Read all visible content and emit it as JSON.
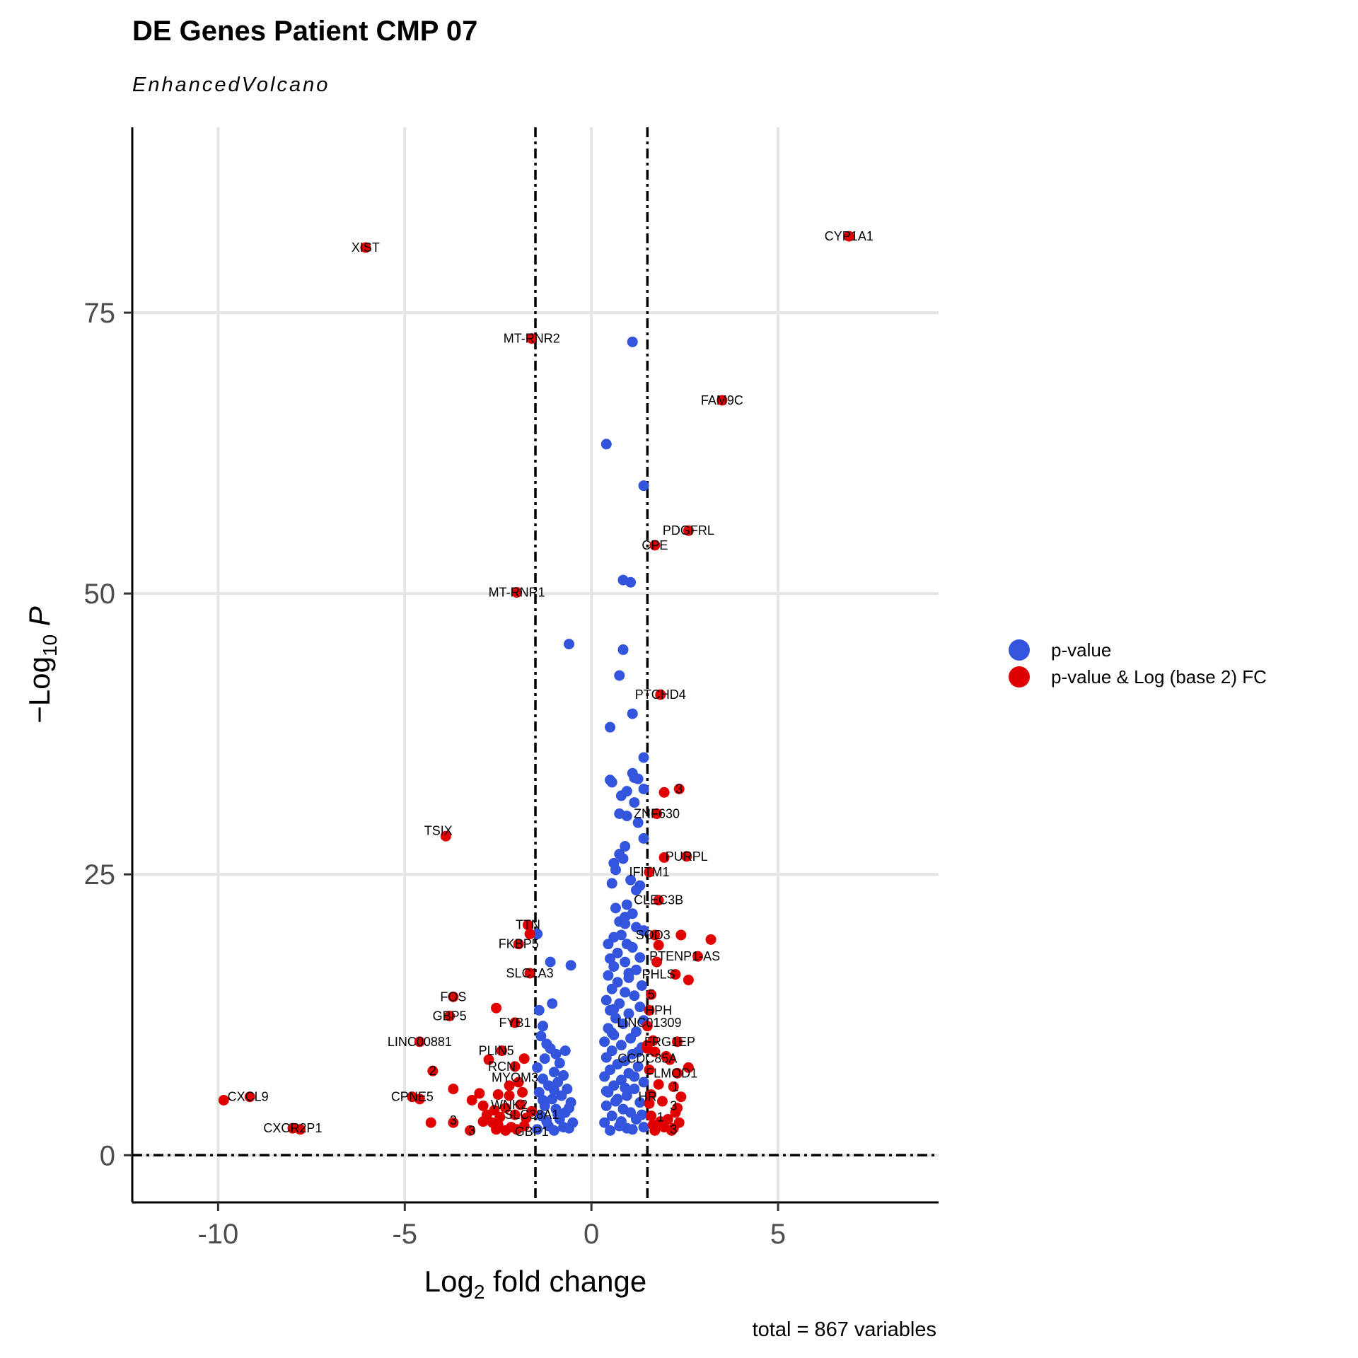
{
  "chart_data": {
    "type": "scatter",
    "title": "DE Genes Patient CMP 07",
    "subtitle": "EnhancedVolcano",
    "caption": "total = 867 variables",
    "xlabel": "Log2 fold change",
    "ylabel": "-Log10 P",
    "xlim": [
      -12.3,
      9.3
    ],
    "ylim": [
      -4.2,
      91.5
    ],
    "x_ticks": [
      -10,
      -5,
      0,
      5
    ],
    "x_tick_labels": [
      "-10",
      "-5",
      "0",
      "5"
    ],
    "y_ticks": [
      0,
      25,
      50,
      75
    ],
    "y_tick_labels": [
      "0",
      "25",
      "50",
      "75"
    ],
    "grid": true,
    "fc_cutoff": 1.5,
    "p_cutoff_line": 0,
    "legend": {
      "placement": "right",
      "entries": [
        {
          "label": "p-value",
          "color": "#3355dd"
        },
        {
          "label": "p-value & Log (base 2) FC",
          "color": "#e00000"
        }
      ]
    },
    "series": [
      {
        "name": "p-value",
        "color": "#3355dd",
        "points": [
          [
            1.1,
            72.4
          ],
          [
            0.4,
            63.3
          ],
          [
            1.4,
            59.6
          ],
          [
            0.85,
            51.2
          ],
          [
            1.05,
            51
          ],
          [
            -0.6,
            45.5
          ],
          [
            0.85,
            45
          ],
          [
            0.75,
            42.7
          ],
          [
            1.1,
            39.3
          ],
          [
            0.5,
            38.1
          ],
          [
            1.4,
            35.4
          ],
          [
            0.5,
            33.4
          ],
          [
            0.55,
            33.2
          ],
          [
            1.1,
            34
          ],
          [
            1.15,
            33.6
          ],
          [
            1.25,
            33.5
          ],
          [
            0.95,
            32.4
          ],
          [
            0.8,
            32
          ],
          [
            1.15,
            31.4
          ],
          [
            1.4,
            32.6
          ],
          [
            0.75,
            30.4
          ],
          [
            0.95,
            30.2
          ],
          [
            1.25,
            29.6
          ],
          [
            1.4,
            28.2
          ],
          [
            0.9,
            27.5
          ],
          [
            0.75,
            26.8
          ],
          [
            0.85,
            26.4
          ],
          [
            0.6,
            26
          ],
          [
            0.65,
            25.4
          ],
          [
            0.55,
            24.2
          ],
          [
            1.05,
            24.5
          ],
          [
            1.3,
            24
          ],
          [
            1.2,
            23.6
          ],
          [
            0.95,
            22.3
          ],
          [
            0.65,
            22
          ],
          [
            1.1,
            21.5
          ],
          [
            0.9,
            21.2
          ],
          [
            0.75,
            20.8
          ],
          [
            1.2,
            20.3
          ],
          [
            1.4,
            20
          ],
          [
            0.8,
            19.6
          ],
          [
            0.6,
            19.4
          ],
          [
            0.95,
            18.8
          ],
          [
            1.1,
            18.5
          ],
          [
            0.7,
            18
          ],
          [
            0.5,
            17.5
          ],
          [
            1.3,
            17.6
          ],
          [
            0.9,
            17.2
          ],
          [
            0.6,
            16.8
          ],
          [
            1.2,
            16.5
          ],
          [
            0.45,
            16
          ],
          [
            1,
            15.8
          ],
          [
            0.7,
            15.4
          ],
          [
            1.35,
            15.1
          ],
          [
            0.55,
            14.8
          ],
          [
            0.9,
            14.5
          ],
          [
            1.15,
            14.2
          ],
          [
            0.4,
            13.8
          ],
          [
            0.75,
            13.5
          ],
          [
            1.3,
            13.2
          ],
          [
            0.5,
            12.9
          ],
          [
            1,
            12.6
          ],
          [
            0.65,
            12.2
          ],
          [
            1.4,
            12
          ],
          [
            0.85,
            11.7
          ],
          [
            0.45,
            11.3
          ],
          [
            1.2,
            11
          ],
          [
            0.6,
            10.7
          ],
          [
            1.05,
            10.4
          ],
          [
            0.35,
            10.1
          ],
          [
            0.8,
            9.8
          ],
          [
            1.35,
            9.6
          ],
          [
            0.55,
            9.3
          ],
          [
            1.1,
            9
          ],
          [
            0.4,
            8.7
          ],
          [
            0.9,
            8.4
          ],
          [
            0.7,
            8.1
          ],
          [
            1.25,
            7.9
          ],
          [
            0.5,
            7.6
          ],
          [
            1,
            7.3
          ],
          [
            0.35,
            7
          ],
          [
            0.8,
            6.7
          ],
          [
            1.4,
            6.5
          ],
          [
            0.6,
            6.2
          ],
          [
            1.15,
            5.9
          ],
          [
            0.45,
            5.6
          ],
          [
            0.95,
            5.3
          ],
          [
            0.7,
            5
          ],
          [
            1.3,
            4.7
          ],
          [
            0.4,
            4.4
          ],
          [
            0.85,
            4.1
          ],
          [
            1.05,
            3.8
          ],
          [
            0.55,
            3.5
          ],
          [
            1.2,
            3.2
          ],
          [
            0.35,
            2.9
          ],
          [
            0.75,
            2.6
          ],
          [
            0.95,
            2.4
          ],
          [
            1.4,
            2.5
          ],
          [
            0.5,
            2.2
          ],
          [
            1.1,
            2.3
          ],
          [
            0.65,
            4.8
          ],
          [
            0.9,
            6
          ],
          [
            1.25,
            9.2
          ],
          [
            0.6,
            13
          ],
          [
            1.0,
            16.2
          ],
          [
            0.45,
            18.8
          ],
          [
            1.35,
            3.6
          ],
          [
            0.8,
            3
          ],
          [
            0.4,
            5.7
          ],
          [
            1.15,
            7
          ],
          [
            0.55,
            10.9
          ],
          [
            0.9,
            20.6
          ],
          [
            -1.1,
            17.2
          ],
          [
            -0.55,
            16.9
          ],
          [
            -1.45,
            19.7
          ],
          [
            -1.4,
            12.9
          ],
          [
            -1.05,
            13.5
          ],
          [
            -0.7,
            9.3
          ],
          [
            -1.3,
            11.5
          ],
          [
            -1.35,
            10.6
          ],
          [
            -1.2,
            9.9
          ],
          [
            -1.1,
            9.5
          ],
          [
            -0.95,
            9
          ],
          [
            -1.25,
            8.6
          ],
          [
            -0.85,
            8.2
          ],
          [
            -1.45,
            7.8
          ],
          [
            -1.0,
            7.4
          ],
          [
            -0.75,
            7.1
          ],
          [
            -1.3,
            6.8
          ],
          [
            -0.9,
            6.5
          ],
          [
            -1.15,
            6.2
          ],
          [
            -0.65,
            5.9
          ],
          [
            -1.4,
            5.6
          ],
          [
            -0.8,
            5.3
          ],
          [
            -1.05,
            5
          ],
          [
            -0.55,
            4.7
          ],
          [
            -1.25,
            4.4
          ],
          [
            -0.95,
            4.1
          ],
          [
            -0.7,
            3.8
          ],
          [
            -1.35,
            3.5
          ],
          [
            -0.85,
            3.2
          ],
          [
            -0.5,
            2.9
          ],
          [
            -1.15,
            2.6
          ],
          [
            -0.6,
            2.4
          ],
          [
            -1.45,
            2.3
          ],
          [
            -1.0,
            2.2
          ],
          [
            -0.75,
            2.5
          ],
          [
            -1.2,
            3
          ],
          [
            -0.9,
            3.6
          ],
          [
            -0.6,
            4.2
          ],
          [
            -1.3,
            4.9
          ],
          [
            -1.0,
            5.8
          ]
        ]
      },
      {
        "name": "p-value & Log (base 2) FC",
        "color": "#e00000",
        "points": [
          [
            6.9,
            81.8
          ],
          [
            -6.05,
            80.8
          ],
          [
            -1.6,
            72.7
          ],
          [
            3.5,
            67.2
          ],
          [
            2.6,
            55.6
          ],
          [
            1.7,
            54.3
          ],
          [
            -2.0,
            50.1
          ],
          [
            1.85,
            41
          ],
          [
            1.95,
            32.3
          ],
          [
            2.35,
            32.6
          ],
          [
            1.75,
            30.4
          ],
          [
            -3.9,
            28.4
          ],
          [
            1.95,
            26.5
          ],
          [
            2.55,
            26.6
          ],
          [
            1.55,
            25.2
          ],
          [
            1.8,
            22.7
          ],
          [
            -1.7,
            20.5
          ],
          [
            -1.65,
            19.7
          ],
          [
            1.7,
            19.6
          ],
          [
            2.4,
            19.6
          ],
          [
            3.2,
            19.2
          ],
          [
            -1.95,
            18.8
          ],
          [
            1.8,
            18.7
          ],
          [
            2.85,
            17.7
          ],
          [
            1.75,
            17.2
          ],
          [
            -1.65,
            16.2
          ],
          [
            2.25,
            16.1
          ],
          [
            2.6,
            15.6
          ],
          [
            1.6,
            14.3
          ],
          [
            -3.7,
            14.1
          ],
          [
            -2.55,
            13.1
          ],
          [
            1.55,
            12.9
          ],
          [
            -3.8,
            12.4
          ],
          [
            -2.05,
            11.8
          ],
          [
            1.5,
            11.5
          ],
          [
            -4.6,
            10.1
          ],
          [
            1.65,
            10.2
          ],
          [
            2.3,
            10.1
          ],
          [
            -2.4,
            9.3
          ],
          [
            1.5,
            9.5
          ],
          [
            1.7,
            9.2
          ],
          [
            -1.8,
            8.6
          ],
          [
            -2.75,
            8.5
          ],
          [
            2.1,
            8.5
          ],
          [
            2.6,
            7.8
          ],
          [
            -2.05,
            7.9
          ],
          [
            -4.25,
            7.5
          ],
          [
            1.55,
            7.6
          ],
          [
            2.3,
            7.3
          ],
          [
            -3.7,
            5.9
          ],
          [
            -1.95,
            6.5
          ],
          [
            -2.2,
            6.2
          ],
          [
            1.8,
            6.3
          ],
          [
            2.2,
            6.1
          ],
          [
            -3.0,
            5.5
          ],
          [
            -2.5,
            5.4
          ],
          [
            -2.2,
            5.3
          ],
          [
            -1.85,
            5.6
          ],
          [
            1.6,
            5.4
          ],
          [
            2.4,
            5.2
          ],
          [
            -4.8,
            5.2
          ],
          [
            -4.6,
            5
          ],
          [
            -9.85,
            4.9
          ],
          [
            -9.15,
            5.2
          ],
          [
            -3.2,
            4.9
          ],
          [
            -2.9,
            4.4
          ],
          [
            -2.6,
            4
          ],
          [
            -2.3,
            4.2
          ],
          [
            -1.9,
            4.5
          ],
          [
            1.55,
            4.6
          ],
          [
            1.9,
            4.8
          ],
          [
            2.3,
            4.2
          ],
          [
            -2.8,
            3.6
          ],
          [
            -2.45,
            3.4
          ],
          [
            -2.05,
            3.6
          ],
          [
            -1.75,
            3.3
          ],
          [
            1.6,
            3.5
          ],
          [
            2.05,
            3.2
          ],
          [
            2.25,
            3.8
          ],
          [
            -4.3,
            2.9
          ],
          [
            -3.7,
            2.9
          ],
          [
            -2.9,
            3
          ],
          [
            -2.5,
            2.7
          ],
          [
            -2.15,
            2.5
          ],
          [
            -1.8,
            2.6
          ],
          [
            1.65,
            2.7
          ],
          [
            1.95,
            2.5
          ],
          [
            2.2,
            2.4
          ],
          [
            -8.0,
            2.4
          ],
          [
            -7.8,
            2.3
          ],
          [
            -3.25,
            2.2
          ],
          [
            -2.55,
            2.3
          ],
          [
            -2.3,
            2.2
          ],
          [
            -2.0,
            2.3
          ],
          [
            1.7,
            2.2
          ],
          [
            2.15,
            2.2
          ],
          [
            1.5,
            9.8
          ],
          [
            2.0,
            8.8
          ],
          [
            -1.6,
            3.9
          ],
          [
            2.35,
            2.9
          ],
          [
            -2.65,
            2.9
          ],
          [
            1.85,
            3
          ]
        ]
      }
    ],
    "labels": [
      {
        "text": "CYP1A1",
        "x": 6.9,
        "y": 81.8
      },
      {
        "text": "XIST",
        "x": -6.05,
        "y": 80.8
      },
      {
        "text": "MT-RNR2",
        "x": -1.6,
        "y": 72.7
      },
      {
        "text": "FAM9C",
        "x": 3.5,
        "y": 67.2
      },
      {
        "text": "PDGFRL",
        "x": 2.6,
        "y": 55.6
      },
      {
        "text": "CPE",
        "x": 1.7,
        "y": 54.3
      },
      {
        "text": "MT-RNR1",
        "x": -2.0,
        "y": 50.1
      },
      {
        "text": "PTCHD4",
        "x": 1.85,
        "y": 41
      },
      {
        "text": "3",
        "x": 2.35,
        "y": 32.6
      },
      {
        "text": "ZNF630",
        "x": 1.75,
        "y": 30.4
      },
      {
        "text": "TSIX",
        "x": -4.1,
        "y": 28.9
      },
      {
        "text": "PURPL",
        "x": 2.55,
        "y": 26.6
      },
      {
        "text": "IFITM1",
        "x": 1.55,
        "y": 25.2
      },
      {
        "text": "CLEC3B",
        "x": 1.8,
        "y": 22.7
      },
      {
        "text": "TTN",
        "x": -1.7,
        "y": 20.5
      },
      {
        "text": "SOD3",
        "x": 1.65,
        "y": 19.6
      },
      {
        "text": "FKBP5",
        "x": -1.95,
        "y": 18.8
      },
      {
        "text": "PTENP1-AS",
        "x": 2.5,
        "y": 17.7
      },
      {
        "text": "SLC1A3",
        "x": -1.65,
        "y": 16.2
      },
      {
        "text": "PHLS",
        "x": 1.8,
        "y": 16.1
      },
      {
        "text": "5",
        "x": 1.6,
        "y": 14.3
      },
      {
        "text": "FOS",
        "x": -3.7,
        "y": 14.1
      },
      {
        "text": "HPH",
        "x": 1.8,
        "y": 12.9
      },
      {
        "text": "GBP5",
        "x": -3.8,
        "y": 12.4
      },
      {
        "text": "FYB1",
        "x": -2.05,
        "y": 11.8
      },
      {
        "text": "LINC01309",
        "x": 1.55,
        "y": 11.8
      },
      {
        "text": "LINC00881",
        "x": -4.6,
        "y": 10.1
      },
      {
        "text": "FRG1EP",
        "x": 2.1,
        "y": 10.1
      },
      {
        "text": "PLIN5",
        "x": -2.55,
        "y": 9.3
      },
      {
        "text": "CCDC85A",
        "x": 1.5,
        "y": 8.6
      },
      {
        "text": "RCN",
        "x": -2.4,
        "y": 7.9
      },
      {
        "text": "2",
        "x": -4.25,
        "y": 7.5
      },
      {
        "text": "FLMOD1",
        "x": 2.15,
        "y": 7.3
      },
      {
        "text": "MYOM3",
        "x": -2.05,
        "y": 6.9
      },
      {
        "text": "1",
        "x": 2.25,
        "y": 6.1
      },
      {
        "text": "CPNE5",
        "x": -4.8,
        "y": 5.2
      },
      {
        "text": "CXCL9",
        "x": -9.2,
        "y": 5.2
      },
      {
        "text": "HR",
        "x": 1.5,
        "y": 5.2
      },
      {
        "text": "WNK2",
        "x": -2.2,
        "y": 4.5
      },
      {
        "text": "3",
        "x": 2.2,
        "y": 4.4
      },
      {
        "text": "SLC38A1",
        "x": -1.6,
        "y": 3.6
      },
      {
        "text": "1",
        "x": 1.85,
        "y": 3.4
      },
      {
        "text": "3",
        "x": -3.7,
        "y": 3.1
      },
      {
        "text": "CXCR2P1",
        "x": -8.0,
        "y": 2.4
      },
      {
        "text": "GBP1",
        "x": -1.6,
        "y": 2.1
      },
      {
        "text": "3",
        "x": -3.2,
        "y": 2.2
      },
      {
        "text": "3",
        "x": 2.2,
        "y": 2.3
      }
    ]
  }
}
